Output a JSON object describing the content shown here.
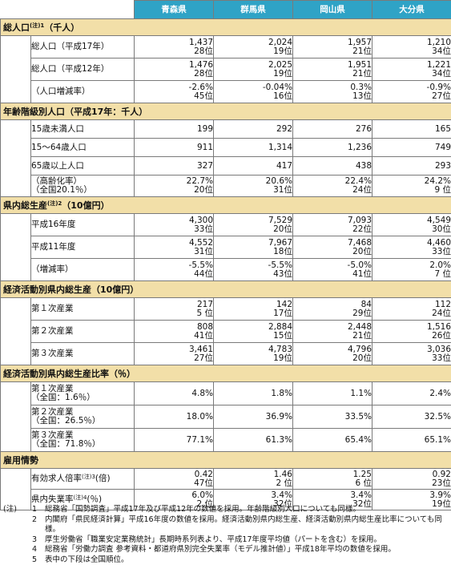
{
  "header": {
    "prefs": [
      "青森県",
      "群馬県",
      "岡山県",
      "大分県"
    ]
  },
  "sections": {
    "s1": {
      "title": "総人口",
      "note": "(注)1",
      "unit": "（千人）"
    },
    "s2": {
      "title": "年齢階級別人口（平成17年：千人）"
    },
    "s3": {
      "title": "県内総生産",
      "note": "(注)2",
      "unit": "（10億円）"
    },
    "s4": {
      "title": "経済活動別県内総生産（10億円）"
    },
    "s5": {
      "title": "経済活動別県内総生産比率（％）"
    },
    "s6": {
      "title": "雇用情勢"
    }
  },
  "rows": {
    "pop17": {
      "label": "総人口（平成17年）",
      "values": [
        "1,437",
        "2,024",
        "1,957",
        "1,210"
      ],
      "ranks": [
        "28位",
        "19位",
        "21位",
        "34位"
      ]
    },
    "pop12": {
      "label": "総人口（平成12年）",
      "values": [
        "1,476",
        "2,025",
        "1,951",
        "1,221"
      ],
      "ranks": [
        "28位",
        "19位",
        "21位",
        "34位"
      ]
    },
    "popchg": {
      "label": "（人口増減率）",
      "values": [
        "-2.6%",
        "-0.04%",
        "0.3%",
        "-0.9%"
      ],
      "ranks": [
        "45位",
        "16位",
        "13位",
        "27位"
      ]
    },
    "age15": {
      "label": "15歳未満人口",
      "values": [
        "199",
        "292",
        "276",
        "165"
      ]
    },
    "age1564": {
      "label": "15～64歳人口",
      "values": [
        "911",
        "1,314",
        "1,236",
        "749"
      ]
    },
    "age65": {
      "label": "65歳以上人口",
      "values": [
        "327",
        "417",
        "438",
        "293"
      ]
    },
    "aging": {
      "label1": "（高齢化率）",
      "label2": "（全国20.1％）",
      "values": [
        "22.7%",
        "20.6%",
        "22.4%",
        "24.2%"
      ],
      "ranks": [
        "20位",
        "31位",
        "24位",
        "9 位"
      ]
    },
    "gdp16": {
      "label": "平成16年度",
      "values": [
        "4,300",
        "7,529",
        "7,093",
        "4,549"
      ],
      "ranks": [
        "33位",
        "20位",
        "22位",
        "30位"
      ]
    },
    "gdp11": {
      "label": "平成11年度",
      "values": [
        "4,552",
        "7,967",
        "7,468",
        "4,460"
      ],
      "ranks": [
        "31位",
        "18位",
        "20位",
        "33位"
      ]
    },
    "gdpchg": {
      "label": "（増減率）",
      "values": [
        "-5.5%",
        "-5.5%",
        "-5.0%",
        "2.0%"
      ],
      "ranks": [
        "44位",
        "43位",
        "41位",
        "7 位"
      ]
    },
    "ind1": {
      "label": "第１次産業",
      "values": [
        "217",
        "142",
        "84",
        "112"
      ],
      "ranks": [
        "5 位",
        "17位",
        "29位",
        "24位"
      ]
    },
    "ind2": {
      "label": "第２次産業",
      "values": [
        "808",
        "2,884",
        "2,448",
        "1,516"
      ],
      "ranks": [
        "41位",
        "15位",
        "21位",
        "26位"
      ]
    },
    "ind3": {
      "label": "第３次産業",
      "values": [
        "3,461",
        "4,783",
        "4,796",
        "3,036"
      ],
      "ranks": [
        "27位",
        "19位",
        "20位",
        "33位"
      ]
    },
    "r1": {
      "label1": "第１次産業",
      "label2": "（全国：1.6％）",
      "values": [
        "4.8%",
        "1.8%",
        "1.1%",
        "2.4%"
      ]
    },
    "r2": {
      "label1": "第２次産業",
      "label2": "（全国：26.5％）",
      "values": [
        "18.0%",
        "36.9%",
        "33.5%",
        "32.5%"
      ]
    },
    "r3": {
      "label1": "第３次産業",
      "label2": "（全国：71.8％）",
      "values": [
        "77.1%",
        "61.3%",
        "65.4%",
        "65.1%"
      ]
    },
    "jobs": {
      "label": "有効求人倍率",
      "note": "(注)3",
      "unit": "(倍)",
      "values": [
        "0.42",
        "1.46",
        "1.25",
        "0.92"
      ],
      "ranks": [
        "47位",
        "2 位",
        "6 位",
        "23位"
      ]
    },
    "unemp": {
      "label": "県内失業率",
      "note": "(注)4",
      "unit": "(％)",
      "values": [
        "6.0%",
        "3.4%",
        "3.4%",
        "3.9%"
      ],
      "ranks": [
        "2 位",
        "32位",
        "32位",
        "19位"
      ]
    }
  },
  "notes": {
    "marker": "(注)",
    "items": [
      {
        "n": "1",
        "text": "総務省「国勢調査」平成17年及び平成12年の数値を採用。年齢階級別人口についても同様。"
      },
      {
        "n": "2",
        "text": "内閣府「県民経済計算」平成16年度の数値を採用。経済活動別県内総生産、経済活動別県内総生産比率についても同様。"
      },
      {
        "n": "3",
        "text": "厚生労働省「職業安定業務統計」長期時系列表より、平成17年度平均値（パートを含む）を採用。"
      },
      {
        "n": "4",
        "text": "総務省「労働力調査 参考資料・都道府県別完全失業率（モデル推計値）」平成18年平均の数値を採用。"
      },
      {
        "n": "5",
        "text": "表中の下段は全国順位。"
      }
    ]
  }
}
